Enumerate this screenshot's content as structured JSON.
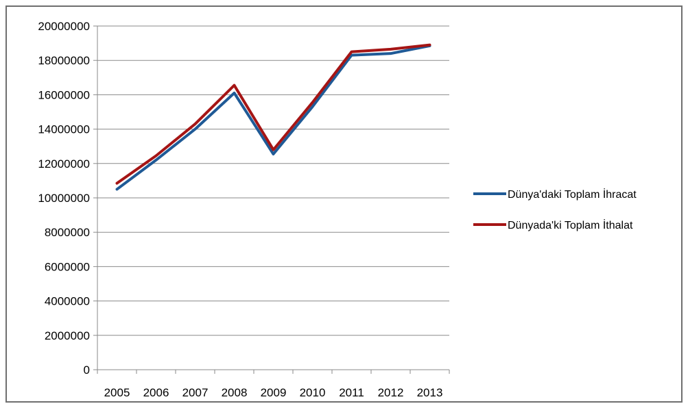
{
  "chart_data": {
    "type": "line",
    "categories": [
      "2005",
      "2006",
      "2007",
      "2008",
      "2009",
      "2010",
      "2011",
      "2012",
      "2013"
    ],
    "series": [
      {
        "name": "Dünya'daki Toplam İhracat",
        "color": "#1f5a96",
        "values": [
          10500000,
          12200000,
          14000000,
          16100000,
          12550000,
          15300000,
          18300000,
          18400000,
          18850000
        ]
      },
      {
        "name": "Dünyada'ki Toplam İthalat",
        "color": "#a51515",
        "values": [
          10850000,
          12450000,
          14300000,
          16550000,
          12800000,
          15550000,
          18500000,
          18650000,
          18900000
        ]
      }
    ],
    "ylim": [
      0,
      20000000
    ],
    "yticks": [
      "0",
      "2000000",
      "4000000",
      "6000000",
      "8000000",
      "10000000",
      "12000000",
      "14000000",
      "16000000",
      "18000000",
      "20000000"
    ],
    "grid": true,
    "legend_position": "right"
  }
}
